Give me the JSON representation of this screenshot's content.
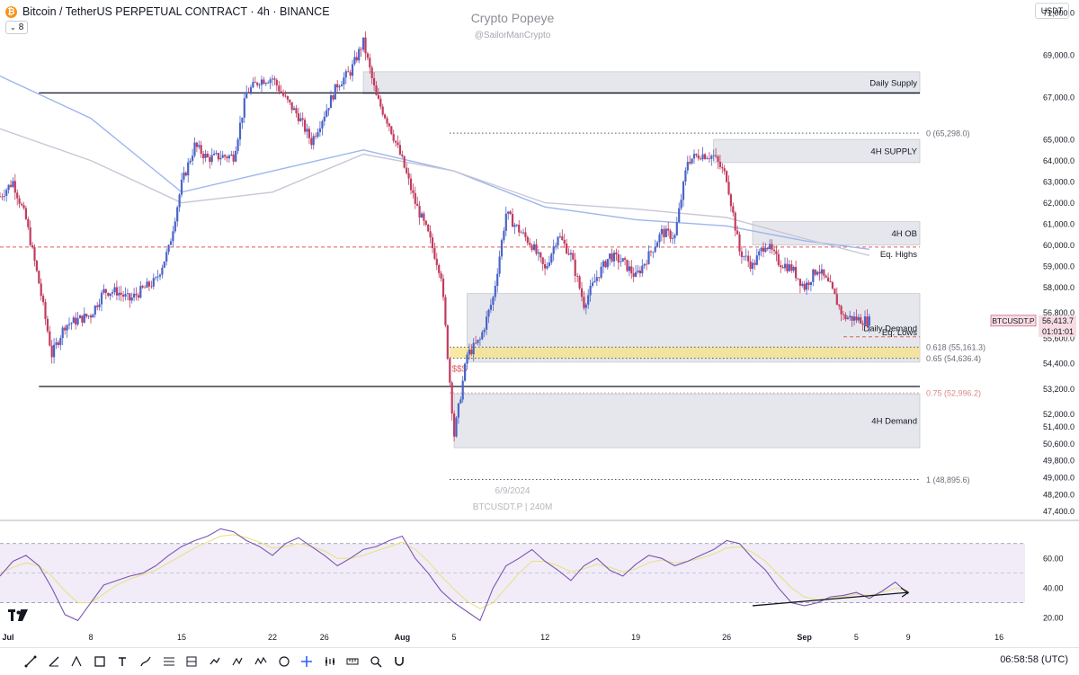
{
  "header": {
    "title": "Bitcoin / TetherUS PERPETUAL CONTRACT · 4h · BINANCE",
    "coin_glyph": "₿",
    "badge": "8",
    "currency": "USDT",
    "watermark_title": "Crypto Popeye",
    "watermark_handle": "@SailorManCrypto",
    "watermark_date": "6/9/2024",
    "watermark_symbol": "BTCUSDT.P | 240M"
  },
  "status": {
    "clock": "06:58:58 (UTC)"
  },
  "toolbar": {
    "icons": [
      "trend-line-icon",
      "ray-icon",
      "pitchfork-icon",
      "rectangle-icon",
      "text-icon",
      "brush-icon",
      "fib-icon",
      "long-position-icon",
      "short-position-icon",
      "path-icon",
      "elliott-wave-icon",
      "cycle-icon",
      "crosshair-icon",
      "candle-pattern-icon",
      "measure-icon",
      "zoom-icon",
      "magnet-icon"
    ]
  },
  "colors": {
    "up": "#4a63c8",
    "down": "#c23b5e",
    "zone": "#d1d4dc",
    "fib": "#f5e287",
    "red_line": "#e05a5a",
    "rsi": "#7b55b0",
    "rsi_bg": "#ede7f6",
    "ma1": "#9db5ef",
    "ma2": "#c9c6d6"
  },
  "chart_data": [
    {
      "type": "candlestick",
      "symbol": "BTCUSDT.P",
      "interval": "4h",
      "y_axis": {
        "range": [
          47000,
          71600
        ],
        "ticks": [
          "71,000.0",
          "69,000.0",
          "67,000.0",
          "65,000.0",
          "64,000.0",
          "63,000.0",
          "62,000.0",
          "61,000.0",
          "60,000.0",
          "59,000.0",
          "58,000.0",
          "56,800.0",
          "55,600.0",
          "54,400.0",
          "53,200.0",
          "52,000.0",
          "51,400.0",
          "50,600.0",
          "49,800.0",
          "49,000.0",
          "48,200.0",
          "47,400.0"
        ]
      },
      "x_axis": {
        "start": "2024-07-01",
        "end": "2024-09-18",
        "ticks": [
          {
            "date": "2024-07-01",
            "label": "Jul"
          },
          {
            "date": "2024-07-08",
            "label": "8"
          },
          {
            "date": "2024-07-15",
            "label": "15"
          },
          {
            "date": "2024-07-22",
            "label": "22"
          },
          {
            "date": "2024-07-26",
            "label": "26"
          },
          {
            "date": "2024-08-01",
            "label": "Aug"
          },
          {
            "date": "2024-08-05",
            "label": "5"
          },
          {
            "date": "2024-08-12",
            "label": "12"
          },
          {
            "date": "2024-08-19",
            "label": "19"
          },
          {
            "date": "2024-08-26",
            "label": "26"
          },
          {
            "date": "2024-09-01",
            "label": "Sep"
          },
          {
            "date": "2024-09-05",
            "label": "5"
          },
          {
            "date": "2024-09-09",
            "label": "9"
          },
          {
            "date": "2024-09-16",
            "label": "16"
          }
        ]
      },
      "price_path": [
        [
          "2024-07-01",
          62300
        ],
        [
          "2024-07-02",
          63000
        ],
        [
          "2024-07-03",
          61200
        ],
        [
          "2024-07-04",
          58200
        ],
        [
          "2024-07-05",
          54800
        ],
        [
          "2024-07-06",
          56200
        ],
        [
          "2024-07-08",
          56700
        ],
        [
          "2024-07-09",
          57800
        ],
        [
          "2024-07-10",
          57800
        ],
        [
          "2024-07-11",
          57400
        ],
        [
          "2024-07-12",
          57900
        ],
        [
          "2024-07-13",
          58300
        ],
        [
          "2024-07-14",
          59800
        ],
        [
          "2024-07-15",
          62900
        ],
        [
          "2024-07-16",
          64700
        ],
        [
          "2024-07-17",
          64100
        ],
        [
          "2024-07-18",
          64200
        ],
        [
          "2024-07-19",
          64200
        ],
        [
          "2024-07-20",
          67200
        ],
        [
          "2024-07-21",
          67800
        ],
        [
          "2024-07-22",
          67900
        ],
        [
          "2024-07-23",
          66900
        ],
        [
          "2024-07-24",
          66100
        ],
        [
          "2024-07-25",
          64900
        ],
        [
          "2024-07-26",
          66200
        ],
        [
          "2024-07-27",
          67600
        ],
        [
          "2024-07-28",
          68200
        ],
        [
          "2024-07-29",
          69600
        ],
        [
          "2024-07-30",
          67000
        ],
        [
          "2024-07-31",
          65700
        ],
        [
          "2024-08-01",
          64000
        ],
        [
          "2024-08-02",
          62000
        ],
        [
          "2024-08-03",
          60500
        ],
        [
          "2024-08-04",
          58600
        ],
        [
          "2024-08-05",
          51000
        ],
        [
          "2024-08-06",
          54800
        ],
        [
          "2024-08-07",
          55500
        ],
        [
          "2024-08-08",
          57500
        ],
        [
          "2024-08-09",
          61500
        ],
        [
          "2024-08-10",
          60700
        ],
        [
          "2024-08-11",
          60000
        ],
        [
          "2024-08-12",
          58800
        ],
        [
          "2024-08-13",
          60500
        ],
        [
          "2024-08-14",
          59500
        ],
        [
          "2024-08-15",
          57200
        ],
        [
          "2024-08-16",
          58500
        ],
        [
          "2024-08-17",
          59500
        ],
        [
          "2024-08-18",
          59200
        ],
        [
          "2024-08-19",
          58500
        ],
        [
          "2024-08-20",
          59500
        ],
        [
          "2024-08-21",
          60600
        ],
        [
          "2024-08-22",
          60400
        ],
        [
          "2024-08-23",
          64000
        ],
        [
          "2024-08-24",
          64300
        ],
        [
          "2024-08-25",
          64200
        ],
        [
          "2024-08-26",
          63200
        ],
        [
          "2024-08-27",
          59700
        ],
        [
          "2024-08-28",
          59000
        ],
        [
          "2024-08-29",
          60100
        ],
        [
          "2024-08-30",
          59200
        ],
        [
          "2024-08-31",
          58900
        ],
        [
          "2024-09-01",
          58000
        ],
        [
          "2024-09-02",
          58900
        ],
        [
          "2024-09-03",
          58000
        ],
        [
          "2024-09-04",
          56600
        ],
        [
          "2024-09-05",
          56500
        ],
        [
          "2024-09-06",
          56400
        ]
      ],
      "last_price": {
        "symbol": "BTCUSDT.P",
        "price": "56,413.7",
        "countdown": "01:01:01"
      },
      "levels": [
        {
          "name": "Daily Supply",
          "type": "zone",
          "from_price": 67150,
          "to_price": 68200,
          "start_date": "2024-07-29"
        },
        {
          "name": "4H SUPPLY",
          "type": "zone",
          "from_price": 63900,
          "to_price": 65000,
          "start_date": "2024-08-25"
        },
        {
          "name": "4H OB",
          "type": "zone",
          "from_price": 60000,
          "to_price": 61100,
          "start_date": "2024-08-28"
        },
        {
          "name": "Daily Demand",
          "type": "zone",
          "from_price": 54450,
          "to_price": 57700,
          "start_date": "2024-08-06"
        },
        {
          "name": "4H Demand",
          "type": "zone",
          "from_price": 50400,
          "to_price": 52950,
          "start_date": "2024-08-05"
        },
        {
          "name": "",
          "type": "hline",
          "price": 67200,
          "start_date": "2024-07-04",
          "color": "#131722"
        },
        {
          "name": "",
          "type": "hline",
          "price": 53300,
          "start_date": "2024-07-04",
          "color": "#131722"
        },
        {
          "name": "Eq. Highs",
          "type": "dashed",
          "price": 59900,
          "start_date": "2024-07-01",
          "color": "#e05a5a"
        },
        {
          "name": "Eq. Lows",
          "type": "dashed",
          "price": 55650,
          "start_date": "2024-09-04",
          "color": "#e05a5a"
        },
        {
          "name": "$$$",
          "type": "label",
          "price": 54000,
          "date": "2024-08-06",
          "color": "#e05a5a"
        }
      ],
      "fib": [
        {
          "label": "0 (65,298.0)",
          "level": 0,
          "price": 65298.0
        },
        {
          "label": "0.618 (55,161.3)",
          "level": 0.618,
          "price": 55161.3
        },
        {
          "label": "0.65 (54,636.4)",
          "level": 0.65,
          "price": 54636.4
        },
        {
          "label": "0.75 (52,996.2)",
          "level": 0.75,
          "price": 52996.2
        },
        {
          "label": "1 (48,895.6)",
          "level": 1,
          "price": 48895.6
        }
      ],
      "moving_averages": [
        {
          "points": [
            [
              "2024-07-01",
              68000
            ],
            [
              "2024-07-08",
              66000
            ],
            [
              "2024-07-15",
              62500
            ],
            [
              "2024-07-22",
              63500
            ],
            [
              "2024-07-29",
              64500
            ],
            [
              "2024-08-05",
              63500
            ],
            [
              "2024-08-12",
              61800
            ],
            [
              "2024-08-19",
              61200
            ],
            [
              "2024-08-26",
              60900
            ],
            [
              "2024-09-01",
              60200
            ],
            [
              "2024-09-06",
              59800
            ]
          ]
        },
        {
          "points": [
            [
              "2024-07-01",
              65500
            ],
            [
              "2024-07-08",
              64000
            ],
            [
              "2024-07-15",
              62000
            ],
            [
              "2024-07-22",
              62500
            ],
            [
              "2024-07-29",
              64300
            ],
            [
              "2024-08-05",
              63500
            ],
            [
              "2024-08-12",
              62000
            ],
            [
              "2024-08-19",
              61700
            ],
            [
              "2024-08-26",
              61300
            ],
            [
              "2024-09-01",
              60300
            ],
            [
              "2024-09-06",
              59500
            ]
          ]
        }
      ]
    },
    {
      "type": "line",
      "indicator": "RSI",
      "y_axis": {
        "range": [
          14,
          82
        ],
        "ticks": [
          "60.00",
          "40.00",
          "20.00"
        ],
        "band": [
          30,
          70
        ]
      },
      "x_start": "2024-07-01",
      "values": [
        48,
        58,
        62,
        55,
        40,
        22,
        18,
        30,
        42,
        45,
        48,
        50,
        55,
        62,
        68,
        72,
        75,
        80,
        78,
        72,
        68,
        62,
        70,
        74,
        68,
        62,
        55,
        60,
        66,
        68,
        72,
        75,
        60,
        50,
        38,
        30,
        24,
        18,
        40,
        55,
        60,
        66,
        58,
        52,
        45,
        55,
        60,
        52,
        48,
        56,
        62,
        60,
        55,
        58,
        62,
        66,
        72,
        70,
        60,
        52,
        40,
        30,
        28,
        30,
        34,
        35,
        37,
        33,
        38,
        44,
        36
      ],
      "signal_values": [
        50,
        54,
        57,
        55,
        48,
        38,
        30,
        30,
        36,
        42,
        46,
        49,
        52,
        57,
        62,
        67,
        71,
        75,
        76,
        74,
        71,
        67,
        68,
        70,
        68,
        65,
        60,
        60,
        62,
        65,
        68,
        71,
        66,
        58,
        48,
        39,
        31,
        26,
        30,
        40,
        50,
        58,
        58,
        55,
        51,
        53,
        56,
        54,
        51,
        53,
        57,
        59,
        57,
        58,
        60,
        63,
        67,
        68,
        64,
        58,
        49,
        40,
        34,
        32,
        33,
        34,
        36,
        35,
        37,
        40,
        38
      ],
      "divergence_arrow": {
        "from": [
          "2024-08-28",
          28
        ],
        "to": [
          "2024-09-09",
          37
        ]
      }
    }
  ]
}
